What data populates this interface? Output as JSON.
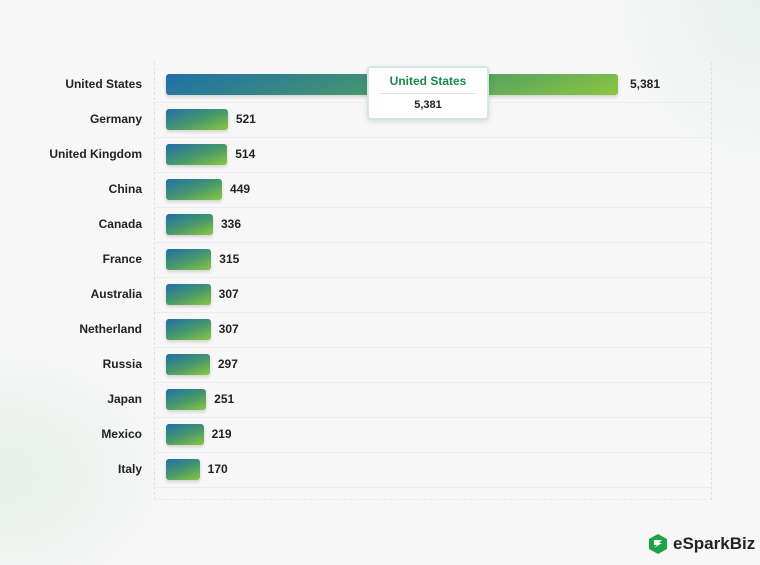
{
  "chart_data": {
    "type": "bar",
    "orientation": "horizontal",
    "categories": [
      "United States",
      "Germany",
      "United Kingdom",
      "China",
      "Canada",
      "France",
      "Australia",
      "Netherland",
      "Russia",
      "Japan",
      "Mexico",
      "Italy"
    ],
    "values": [
      5381,
      521,
      514,
      449,
      336,
      315,
      307,
      307,
      297,
      251,
      219,
      170
    ],
    "value_labels": [
      "5,381",
      "521",
      "514",
      "449",
      "336",
      "315",
      "307",
      "307",
      "297",
      "251",
      "219",
      "170"
    ],
    "grid": true,
    "colors": {
      "bar_start": "#1f6fa8",
      "bar_end": "#8cc63f"
    }
  },
  "tooltip": {
    "title": "United States",
    "value": "5,381"
  },
  "brand": {
    "name": "eSparkBiz",
    "color": "#1fa34a"
  }
}
